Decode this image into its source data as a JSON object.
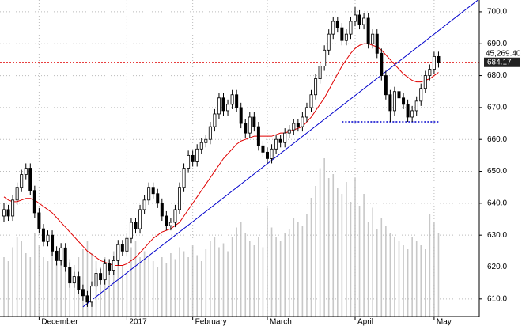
{
  "chart_data": {
    "type": "candlestick",
    "categories": [
      null,
      null,
      null,
      null,
      null,
      null,
      null,
      null,
      "December",
      null,
      null,
      null,
      null,
      null,
      null,
      null,
      null,
      null,
      null,
      null,
      null,
      null,
      null,
      null,
      null,
      null,
      null,
      null,
      "2017",
      null,
      null,
      null,
      null,
      null,
      null,
      null,
      null,
      null,
      null,
      null,
      null,
      null,
      null,
      "February",
      null,
      null,
      null,
      null,
      null,
      null,
      null,
      null,
      null,
      null,
      null,
      null,
      null,
      null,
      null,
      null,
      "March",
      null,
      null,
      null,
      null,
      null,
      null,
      null,
      null,
      null,
      null,
      null,
      null,
      null,
      null,
      null,
      null,
      null,
      null,
      null,
      "April",
      null,
      null,
      null,
      null,
      null,
      null,
      null,
      null,
      null,
      null,
      null,
      null,
      null,
      null,
      null,
      null,
      null,
      "May",
      null
    ],
    "ohlc": [
      [
        636,
        640,
        634,
        638
      ],
      [
        638,
        639.5,
        634.5,
        636
      ],
      [
        636,
        642.5,
        634.5,
        641
      ],
      [
        641,
        646.5,
        639.5,
        645
      ],
      [
        645,
        650.5,
        643.5,
        649
      ],
      [
        649,
        652.5,
        647.5,
        651
      ],
      [
        651,
        652.5,
        642.5,
        644
      ],
      [
        644,
        645.5,
        635.5,
        637
      ],
      [
        637,
        638.5,
        630.5,
        632
      ],
      [
        632,
        633.5,
        626.5,
        628
      ],
      [
        628,
        631.5,
        626.5,
        630
      ],
      [
        630,
        631.5,
        623.5,
        625
      ],
      [
        625,
        626.5,
        620.5,
        622
      ],
      [
        622,
        627.5,
        620.5,
        626
      ],
      [
        626,
        627.5,
        618.5,
        620
      ],
      [
        620,
        621.5,
        613.5,
        615
      ],
      [
        615,
        618.5,
        613.5,
        617
      ],
      [
        617,
        618.5,
        611.5,
        613
      ],
      [
        613,
        614.5,
        609.5,
        611
      ],
      [
        611,
        612.5,
        607.5,
        609
      ],
      [
        609,
        615.5,
        607.5,
        614
      ],
      [
        614,
        619.5,
        612.5,
        618
      ],
      [
        618,
        619.5,
        614.5,
        616
      ],
      [
        616,
        622.5,
        614.5,
        621
      ],
      [
        621,
        622.5,
        617.5,
        619
      ],
      [
        619,
        623.5,
        617.5,
        622
      ],
      [
        622,
        628.5,
        620.5,
        627
      ],
      [
        627,
        628.5,
        623.5,
        625
      ],
      [
        625,
        630.5,
        623.5,
        629
      ],
      [
        629,
        635.5,
        627.5,
        634
      ],
      [
        634,
        635.5,
        630.5,
        632
      ],
      [
        632,
        639.5,
        630.5,
        638
      ],
      [
        638,
        642.5,
        636.5,
        641
      ],
      [
        641,
        646.5,
        639.5,
        645
      ],
      [
        645,
        646.5,
        641.5,
        643
      ],
      [
        643,
        644.5,
        638.5,
        640
      ],
      [
        640,
        641.5,
        634.5,
        636
      ],
      [
        636,
        637.5,
        631.5,
        633
      ],
      [
        633,
        635.5,
        631.5,
        634
      ],
      [
        634,
        639.5,
        632.5,
        638
      ],
      [
        638,
        646.5,
        636.5,
        645
      ],
      [
        645,
        652.5,
        643.5,
        651
      ],
      [
        651,
        656.5,
        649.5,
        655
      ],
      [
        655,
        656.5,
        651.5,
        653
      ],
      [
        653,
        658.5,
        651.5,
        657
      ],
      [
        657,
        660.5,
        655.5,
        659
      ],
      [
        659,
        661.5,
        657.5,
        660
      ],
      [
        660,
        665.5,
        658.5,
        664
      ],
      [
        664,
        669.5,
        662.5,
        668
      ],
      [
        668,
        674.5,
        666.5,
        673
      ],
      [
        673,
        674.5,
        667.5,
        669
      ],
      [
        669,
        672.5,
        667.5,
        671
      ],
      [
        671,
        675.5,
        669.5,
        674
      ],
      [
        674,
        675.5,
        668.5,
        670
      ],
      [
        670,
        671.5,
        663.5,
        665
      ],
      [
        665,
        666.5,
        660.5,
        662
      ],
      [
        662,
        668.5,
        660.5,
        667
      ],
      [
        667,
        668.5,
        662.5,
        664
      ],
      [
        664,
        665.5,
        656.5,
        658
      ],
      [
        658,
        659.5,
        654.5,
        656
      ],
      [
        656,
        657.5,
        652.5,
        654
      ],
      [
        654,
        658.5,
        652.5,
        657
      ],
      [
        657,
        661.5,
        655.5,
        660
      ],
      [
        660,
        661.5,
        657.5,
        659
      ],
      [
        659,
        663.5,
        657.5,
        662
      ],
      [
        662,
        664.5,
        660.5,
        663
      ],
      [
        663,
        666.5,
        661.5,
        665
      ],
      [
        665,
        666.5,
        662.5,
        664
      ],
      [
        664,
        668.5,
        662.5,
        667
      ],
      [
        667,
        671.5,
        665.5,
        670
      ],
      [
        670,
        675.5,
        668.5,
        674
      ],
      [
        674,
        680.5,
        672.5,
        679
      ],
      [
        679,
        684.5,
        677.5,
        683
      ],
      [
        683,
        689.5,
        681.5,
        688
      ],
      [
        688,
        694.5,
        686.5,
        693
      ],
      [
        693,
        698.5,
        691.5,
        697
      ],
      [
        697,
        698.5,
        693.5,
        695
      ],
      [
        695,
        696.5,
        689.5,
        691
      ],
      [
        691,
        694.5,
        689.5,
        693
      ],
      [
        693,
        698.5,
        691.5,
        697
      ],
      [
        697,
        701.5,
        695.5,
        699
      ],
      [
        699,
        700.5,
        694.5,
        696
      ],
      [
        696,
        699.5,
        694.5,
        698
      ],
      [
        698,
        699.5,
        688.5,
        690
      ],
      [
        690,
        694.5,
        688.5,
        693
      ],
      [
        693,
        694.5,
        685.5,
        687
      ],
      [
        687,
        688.5,
        678.5,
        680
      ],
      [
        680,
        681.5,
        672.5,
        674
      ],
      [
        674,
        675.5,
        665.5,
        669
      ],
      [
        669,
        676.5,
        667.5,
        675
      ],
      [
        675,
        676.5,
        671.5,
        673
      ],
      [
        673,
        674.5,
        669.5,
        671
      ],
      [
        671,
        672.5,
        665.5,
        667
      ],
      [
        667,
        670.5,
        665.5,
        669
      ],
      [
        669,
        673.5,
        667.5,
        672
      ],
      [
        672,
        677.5,
        670.5,
        676
      ],
      [
        676,
        681.5,
        674.5,
        680
      ],
      [
        680,
        683.5,
        678.5,
        682
      ],
      [
        682,
        687.5,
        680.5,
        686
      ],
      [
        686,
        687.5,
        682.5,
        684.17
      ]
    ],
    "moving_average": {
      "color": "#e00000",
      "values": [
        642,
        641,
        640.5,
        640.5,
        641,
        641.5,
        641.5,
        641,
        640,
        639,
        638,
        637,
        635.5,
        634,
        632.5,
        631,
        629.5,
        628,
        626.5,
        625,
        624,
        623,
        622,
        621.5,
        621,
        620.5,
        620.5,
        620.5,
        621,
        622,
        623,
        624.5,
        626,
        627.5,
        629,
        630,
        631,
        631.5,
        632,
        633,
        634,
        636,
        638,
        640,
        642,
        644,
        646,
        648,
        650,
        652,
        654,
        655.5,
        657,
        658.5,
        659.5,
        660,
        660.5,
        661,
        661,
        661,
        661,
        661,
        661.5,
        662,
        662,
        662.5,
        663,
        663.5,
        664,
        665.5,
        667,
        669,
        671,
        673,
        675.5,
        678,
        680.5,
        683,
        685,
        687,
        688.5,
        689.5,
        690,
        690,
        689.5,
        689,
        688,
        686.5,
        685,
        683.5,
        682,
        680.5,
        679.5,
        678.5,
        678,
        678,
        678.5,
        679,
        680,
        681
      ]
    },
    "volume": {
      "color": "#c8c8c8",
      "lim": [
        0,
        100
      ],
      "values": [
        30,
        28,
        35,
        40,
        38,
        32,
        30,
        42,
        36,
        30,
        28,
        33,
        27,
        31,
        35,
        29,
        26,
        30,
        34,
        38,
        32,
        28,
        25,
        30,
        27,
        33,
        29,
        26,
        22,
        35,
        38,
        30,
        33,
        31,
        28,
        25,
        30,
        27,
        32,
        29,
        35,
        33,
        30,
        36,
        31,
        28,
        34,
        38,
        40,
        35,
        37,
        33,
        40,
        45,
        48,
        42,
        38,
        36,
        40,
        35,
        55,
        45,
        40,
        38,
        42,
        44,
        50,
        48,
        46,
        52,
        60,
        66,
        75,
        80,
        70,
        72,
        65,
        62,
        68,
        58,
        70,
        56,
        62,
        48,
        55,
        44,
        50,
        46,
        42,
        40,
        38,
        36,
        34,
        40,
        38,
        36,
        34,
        52,
        48,
        42
      ]
    },
    "trendline": {
      "color": "#0000cc",
      "from": [
        18,
        607.5
      ],
      "to": [
        108,
        703.7
      ]
    },
    "support_line": {
      "color": "#0000cc",
      "from": [
        77,
        665.5
      ],
      "to": [
        99,
        665.5
      ]
    },
    "price_line": {
      "color": "#e00000",
      "value": 684.17
    },
    "annotation": "45,269.40",
    "ylim": [
      604.5,
      703.7
    ],
    "yticks": [
      {
        "value": 610,
        "label": "610.0"
      },
      {
        "value": 620,
        "label": "620.0"
      },
      {
        "value": 630,
        "label": "630.0"
      },
      {
        "value": 640,
        "label": "640.0"
      },
      {
        "value": 650,
        "label": "650.0"
      },
      {
        "value": 660,
        "label": "660.0"
      },
      {
        "value": 670,
        "label": "670.0"
      },
      {
        "value": 680,
        "label": "680.0"
      },
      {
        "value": 690,
        "label": "690.0"
      },
      {
        "value": 700,
        "label": "700.0"
      }
    ],
    "grid": true
  }
}
